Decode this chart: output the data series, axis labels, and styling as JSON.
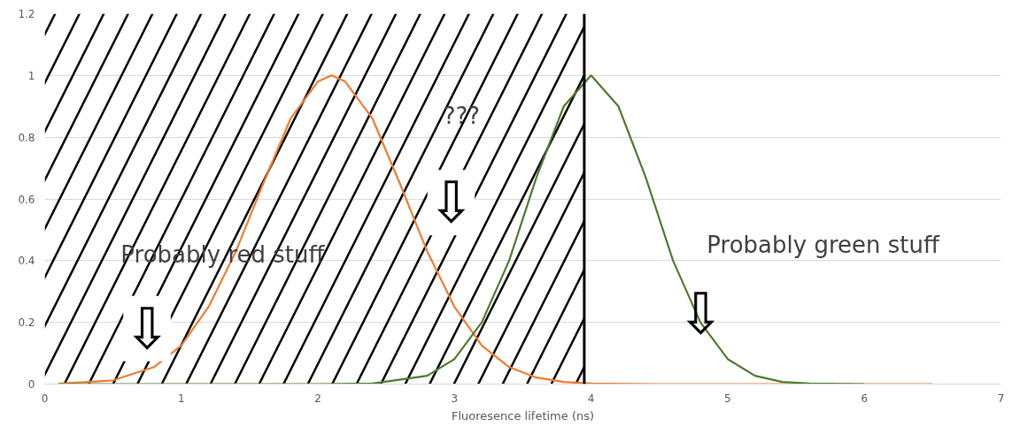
{
  "chart_data": {
    "type": "line",
    "xlabel": "Fluoresence lifetime (ns)",
    "xlim": [
      0,
      7
    ],
    "xticks": [
      0,
      1,
      2,
      3,
      4,
      5,
      6,
      7
    ],
    "ylim": [
      0,
      1.2
    ],
    "yticks": [
      0,
      0.2,
      0.4,
      0.6,
      0.8,
      1,
      1.2
    ],
    "grid": "y",
    "marker": "none",
    "line_style": "solid",
    "series": [
      {
        "color": "#ed7d31",
        "x": [
          0.1,
          0.5,
          0.8,
          1.0,
          1.2,
          1.4,
          1.6,
          1.8,
          2.0,
          2.1,
          2.2,
          2.4,
          2.6,
          2.8,
          3.0,
          3.2,
          3.4,
          3.6,
          3.8,
          4.0,
          4.5,
          6.5
        ],
        "values": [
          0.001,
          0.012,
          0.055,
          0.125,
          0.25,
          0.43,
          0.65,
          0.86,
          0.98,
          1,
          0.98,
          0.86,
          0.65,
          0.43,
          0.25,
          0.125,
          0.055,
          0.021,
          0.007,
          0.002,
          0,
          0
        ]
      },
      {
        "color": "#4e7a2e",
        "x": [
          0.1,
          2.0,
          2.4,
          2.8,
          3.0,
          3.2,
          3.4,
          3.6,
          3.8,
          4.0,
          4.2,
          4.4,
          4.6,
          4.8,
          5.0,
          5.2,
          5.4,
          5.6,
          6.0
        ],
        "values": [
          0,
          0,
          0.002,
          0.027,
          0.081,
          0.2,
          0.4,
          0.67,
          0.9,
          1,
          0.9,
          0.67,
          0.4,
          0.2,
          0.081,
          0.027,
          0.007,
          0.002,
          0
        ]
      }
    ],
    "ref_lines": [
      {
        "axis": "x",
        "value": 3.95,
        "color": "#000000",
        "line_style": "solid"
      }
    ],
    "bands": [
      {
        "axis": "x",
        "from": 0,
        "to": 3.95,
        "color": "#000000"
      }
    ],
    "annotations": [
      "Probably red stuff",
      "???",
      "Probably green stuff",
      "⇩",
      "⇩",
      "⇩"
    ]
  }
}
